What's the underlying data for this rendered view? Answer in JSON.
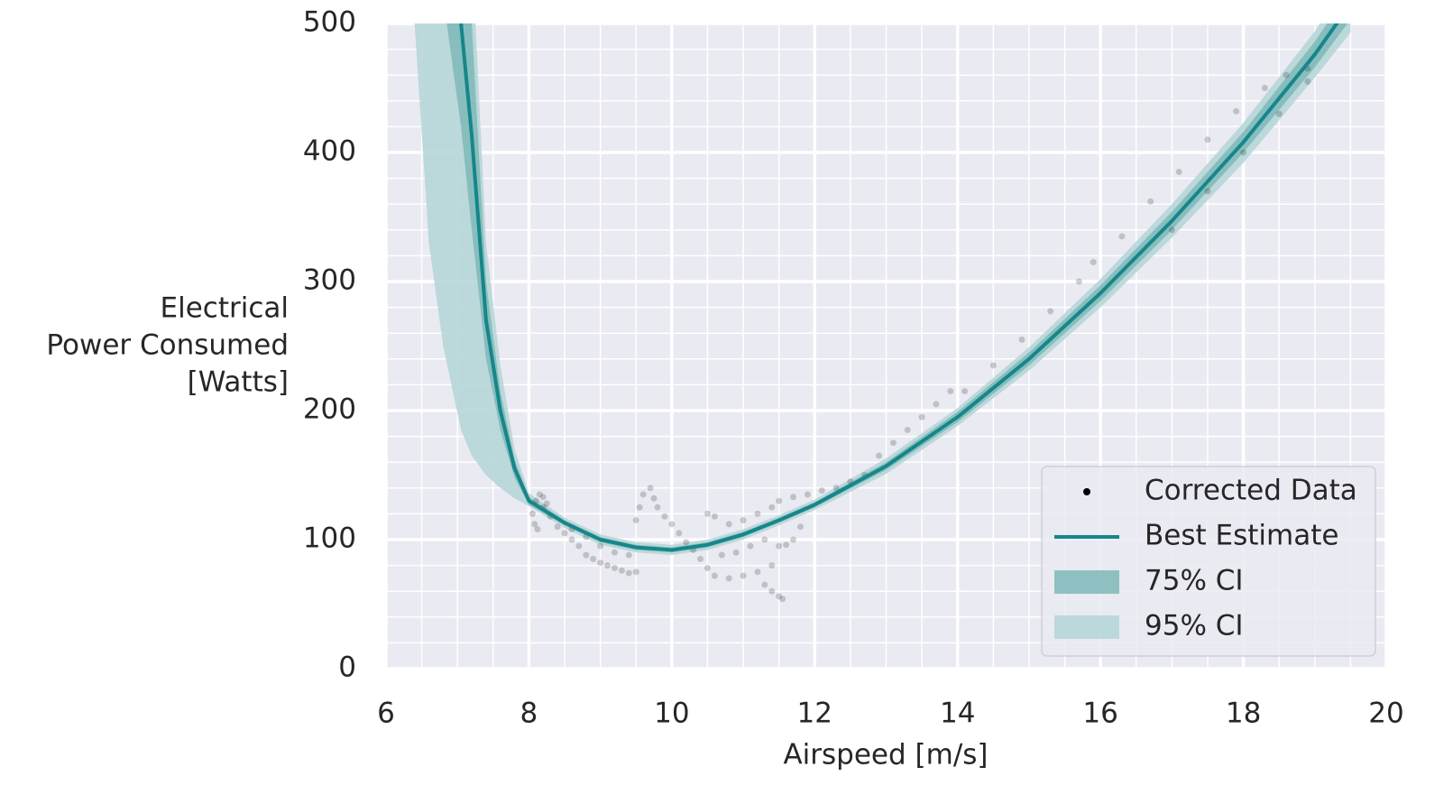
{
  "chart_data": {
    "type": "line",
    "xlabel": "Airspeed [m/s]",
    "ylabel": [
      "Electrical",
      "Power Consumed",
      "[Watts]"
    ],
    "xlim": [
      6,
      20
    ],
    "ylim": [
      0,
      500
    ],
    "xticks": [
      6,
      8,
      10,
      12,
      14,
      16,
      18,
      20
    ],
    "yticks": [
      0,
      100,
      200,
      300,
      400,
      500
    ],
    "grid": true,
    "minor_grid": {
      "x": 4,
      "y": 5
    },
    "legend": "lower right",
    "x": [
      6.4,
      6.6,
      6.8,
      7.05,
      7.2,
      7.4,
      7.6,
      7.8,
      8,
      8.5,
      9,
      9.5,
      10,
      10.5,
      11,
      11.5,
      12,
      13,
      14,
      15,
      16,
      17,
      18,
      19,
      19.5
    ],
    "series": [
      {
        "name": "Corrected Data",
        "kind": "scatter",
        "color": "#000000",
        "x": [
          8.05,
          8.1,
          8.15,
          8.2,
          8.25,
          8.08,
          8.12,
          8.2,
          8.3,
          8.4,
          8.5,
          8.6,
          8.7,
          8.8,
          8.9,
          9.0,
          9.1,
          9.2,
          9.3,
          9.4,
          9.5,
          8.6,
          8.8,
          9.0,
          9.2,
          9.4,
          9.5,
          9.55,
          9.6,
          9.7,
          9.75,
          9.8,
          9.9,
          10.0,
          10.1,
          10.2,
          10.3,
          10.4,
          10.5,
          10.6,
          10.8,
          11.0,
          11.2,
          11.3,
          11.4,
          11.5,
          11.55,
          11.4,
          11.5,
          11.6,
          11.7,
          11.8,
          11.3,
          11.1,
          10.9,
          10.7,
          10.5,
          10.6,
          10.8,
          11.0,
          11.2,
          11.4,
          11.5,
          11.7,
          11.9,
          12.1,
          12.3,
          12.5,
          12.7,
          12.9,
          13.1,
          13.3,
          13.5,
          13.7,
          13.9,
          14.1,
          14.5,
          14.9,
          15.3,
          15.7,
          15.9,
          16.3,
          16.7,
          17.1,
          17.5,
          17.9,
          18.3,
          18.6,
          18.9,
          17.0,
          17.5,
          18.0,
          18.5,
          18.9
        ],
        "values": [
          120,
          130,
          135,
          133,
          128,
          112,
          108,
          125,
          118,
          110,
          105,
          100,
          95,
          88,
          85,
          82,
          80,
          78,
          76,
          74,
          75,
          108,
          102,
          95,
          90,
          88,
          115,
          125,
          135,
          140,
          132,
          125,
          118,
          112,
          105,
          98,
          92,
          85,
          78,
          72,
          70,
          72,
          75,
          65,
          60,
          56,
          54,
          80,
          95,
          96,
          100,
          110,
          100,
          95,
          90,
          88,
          120,
          118,
          112,
          115,
          120,
          125,
          130,
          133,
          135,
          138,
          140,
          145,
          150,
          165,
          175,
          185,
          195,
          205,
          215,
          215,
          235,
          255,
          277,
          300,
          315,
          335,
          362,
          385,
          410,
          432,
          450,
          460,
          465,
          340,
          370,
          400,
          430,
          455
        ]
      },
      {
        "name": "Best Estimate",
        "kind": "line",
        "color": "#16868a",
        "values": [
          null,
          null,
          null,
          500,
          413,
          270,
          200,
          155,
          130,
          113,
          100,
          94,
          92,
          96,
          104,
          115,
          127,
          157,
          195,
          240,
          291,
          347,
          408,
          476,
          515
        ]
      },
      {
        "name": "75% CI",
        "kind": "band",
        "color": "#7fb8b9",
        "lower": [
          null,
          null,
          520,
          420,
          340,
          240,
          185,
          148,
          127,
          111,
          98,
          92,
          90,
          94,
          102,
          113,
          125,
          154,
          191,
          235,
          285,
          340,
          400,
          466,
          503
        ],
        "upper": [
          null,
          null,
          900,
          620,
          500,
          300,
          215,
          162,
          133,
          115,
          102,
          96,
          94,
          98,
          106,
          117,
          129,
          160,
          199,
          245,
          297,
          354,
          416,
          486,
          527
        ]
      },
      {
        "name": "95% CI",
        "kind": "band",
        "color": "#b3d5d6",
        "lower": [
          500,
          330,
          250,
          185,
          165,
          150,
          140,
          132,
          126,
          109,
          96,
          90,
          88,
          92,
          100,
          111,
          123,
          151,
          188,
          231,
          280,
          334,
          392,
          458,
          493
        ],
        "upper": [
          1200,
          900,
          750,
          700,
          560,
          330,
          235,
          170,
          136,
          117,
          104,
          98,
          96,
          100,
          108,
          119,
          131,
          163,
          202,
          249,
          302,
          360,
          423,
          494,
          537
        ]
      }
    ]
  }
}
